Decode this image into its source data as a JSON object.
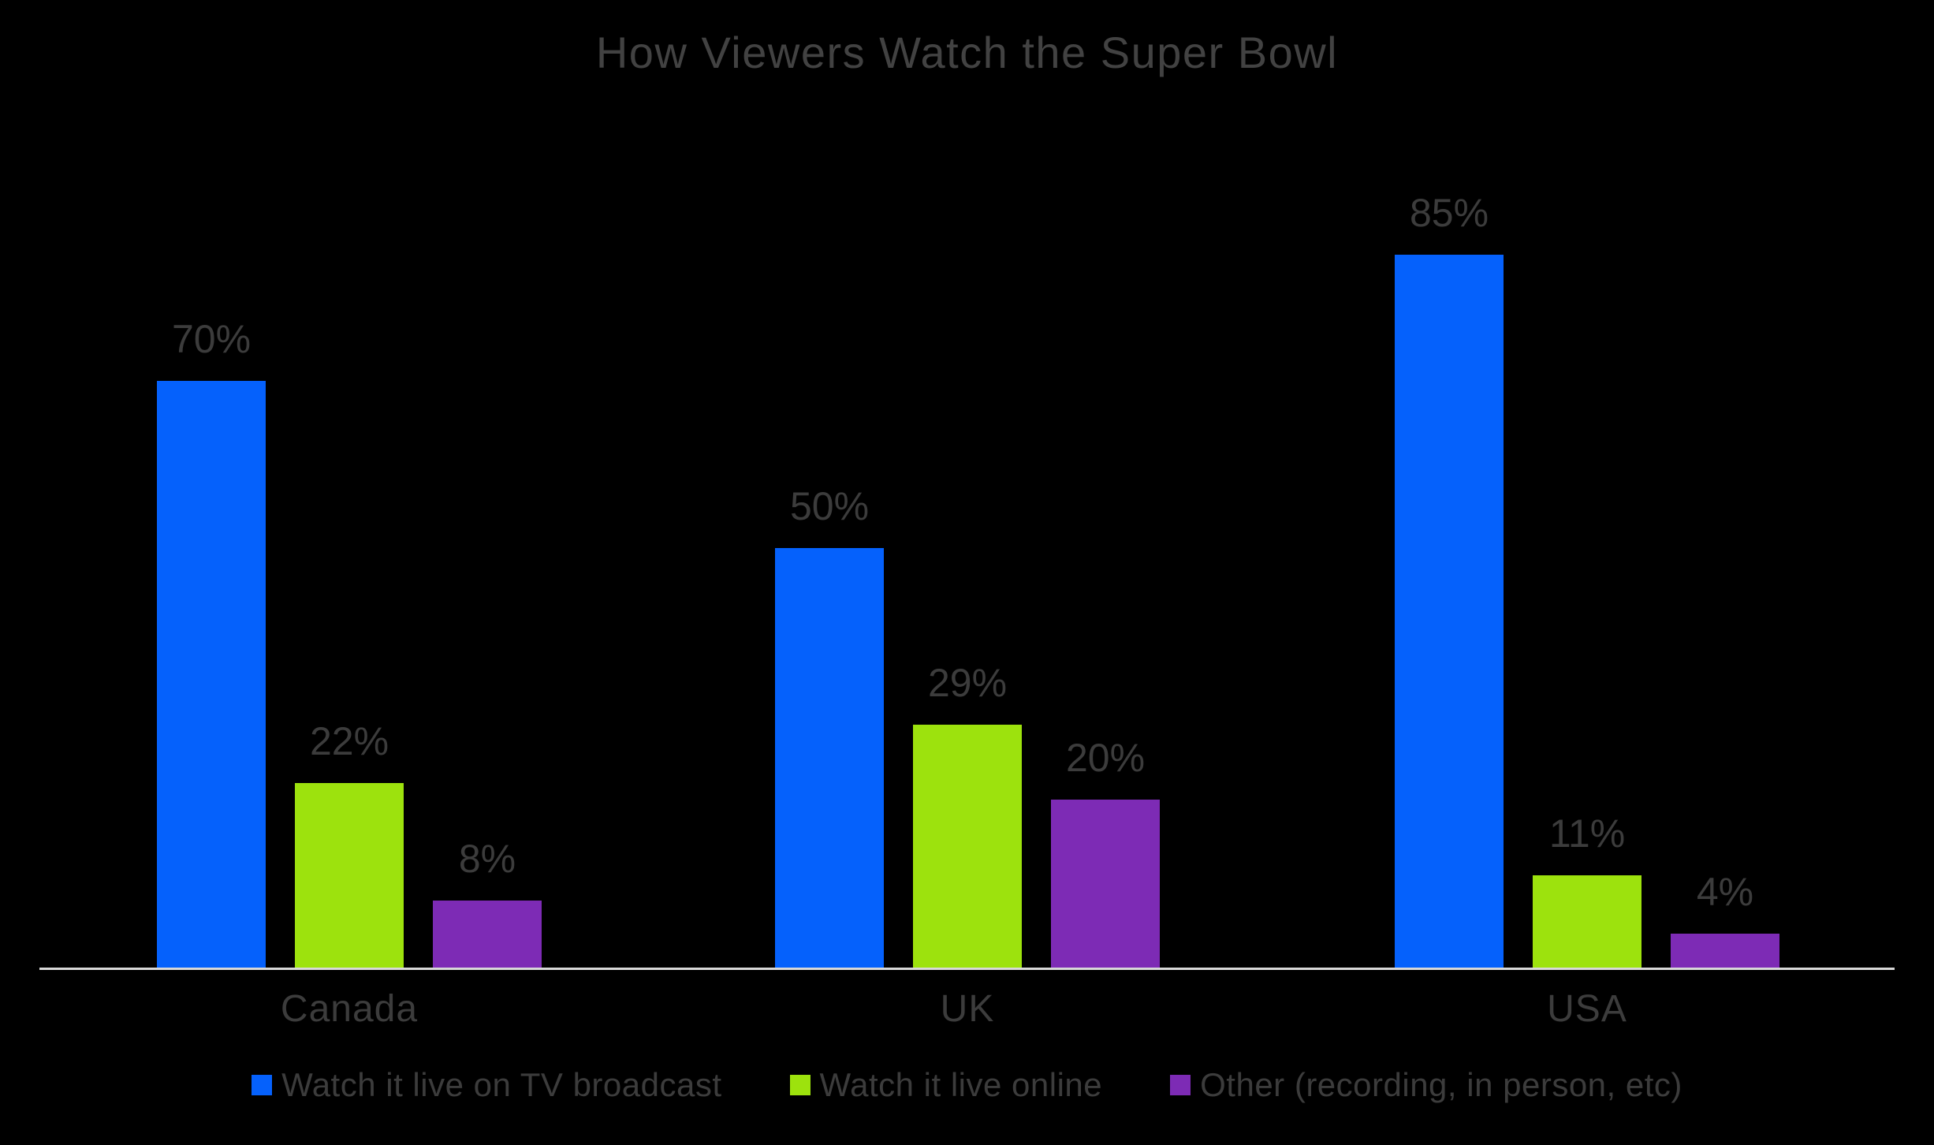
{
  "page": {
    "background": "#000000"
  },
  "chart_data": {
    "type": "bar",
    "title": "How Viewers Watch the Super Bowl",
    "categories": [
      "Canada",
      "UK",
      "USA"
    ],
    "series": [
      {
        "name": "Watch it live on TV broadcast",
        "color": "#0561FC",
        "values": [
          70,
          50,
          85
        ]
      },
      {
        "name": "Watch it live online",
        "color": "#9DE20D",
        "values": [
          22,
          29,
          11
        ]
      },
      {
        "name": "Other (recording, in person, etc)",
        "color": "#7D2BB5",
        "values": [
          8,
          20,
          4
        ]
      }
    ],
    "value_suffix": "%",
    "data_labels": true,
    "xlabel": "",
    "ylabel": "",
    "ylim": [
      0,
      100
    ],
    "grid": false,
    "y_axis_visible": false,
    "legend_position": "bottom",
    "background": "#000000",
    "axis_line_color": "#D9D9D9",
    "text_color": "#3C3C3C",
    "title_color": "#424242"
  }
}
